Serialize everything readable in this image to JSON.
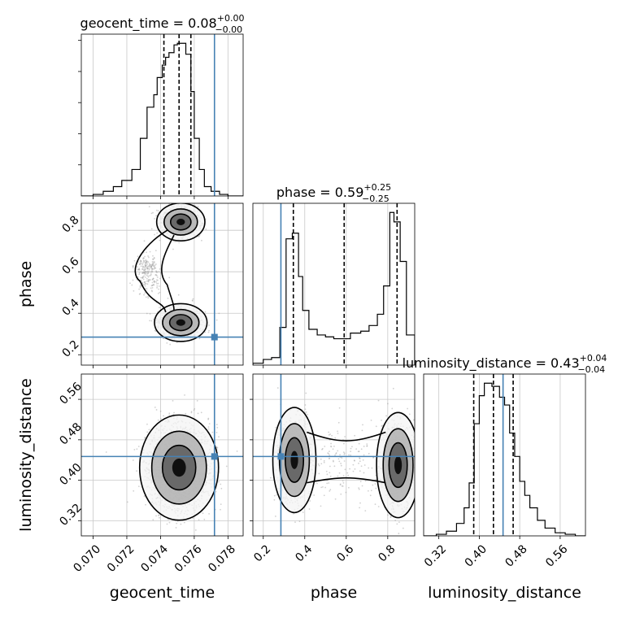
{
  "colors": {
    "truth": "#4682b4",
    "hist": "#000000",
    "grid": "#c8c8c8",
    "scatter": "#9a9a9a",
    "contour_fill_light": "#f4f4f4",
    "contour_fill_mid": "#b0b0b0",
    "contour_fill_dark": "#5a5a5a",
    "contour_fill_core": "#000000"
  },
  "chart_data": {
    "type": "corner",
    "parameters": [
      "geocent_time",
      "phase",
      "luminosity_distance"
    ],
    "titles": [
      {
        "param": "geocent_time",
        "base": "geocent_time = 0.08",
        "plus": "+0.00",
        "minus": "−0.00"
      },
      {
        "param": "phase",
        "base": "phase = 0.59",
        "plus": "+0.25",
        "minus": "−0.25"
      },
      {
        "param": "luminosity_distance",
        "base": "luminosity_distance = 0.43",
        "plus": "+0.04",
        "minus": "−0.04"
      }
    ],
    "axis_labels": {
      "geocent_time": "geocent_time",
      "phase": "phase",
      "luminosity_distance": "luminosity_distance"
    },
    "ranges": {
      "geocent_time": [
        0.0693,
        0.0789
      ],
      "phase": [
        0.15,
        0.93
      ],
      "luminosity_distance": [
        0.29,
        0.61
      ]
    },
    "ticks": {
      "geocent_time": [
        "0.070",
        "0.072",
        "0.074",
        "0.076",
        "0.078"
      ],
      "phase": [
        "0.2",
        "0.4",
        "0.6",
        "0.8"
      ],
      "luminosity_distance": [
        "0.32",
        "0.40",
        "0.48",
        "0.56"
      ]
    },
    "truth": {
      "geocent_time": 0.0772,
      "phase": 0.285,
      "luminosity_distance": 0.447
    },
    "quantiles": {
      "geocent_time": [
        0.0742,
        0.0751,
        0.0758
      ],
      "phase": [
        0.345,
        0.59,
        0.845
      ],
      "luminosity_distance": [
        0.389,
        0.428,
        0.467
      ]
    },
    "histograms": {
      "geocent_time": {
        "edges": [
          0.0693,
          0.07,
          0.0706,
          0.0712,
          0.0717,
          0.0723,
          0.0728,
          0.0732,
          0.0736,
          0.0738,
          0.0741,
          0.0743,
          0.0745,
          0.0748,
          0.075,
          0.0753,
          0.0755,
          0.0758,
          0.076,
          0.0763,
          0.0766,
          0.077,
          0.0775,
          0.078,
          0.0789
        ],
        "counts": [
          0,
          1,
          3,
          6,
          10,
          17,
          37,
          57,
          65,
          76,
          84,
          89,
          92,
          97,
          98,
          98,
          91,
          67,
          37,
          17,
          6,
          3,
          1,
          0
        ]
      },
      "phase": {
        "edges": [
          0.15,
          0.2,
          0.24,
          0.28,
          0.31,
          0.34,
          0.37,
          0.39,
          0.42,
          0.46,
          0.5,
          0.54,
          0.58,
          0.62,
          0.67,
          0.71,
          0.75,
          0.78,
          0.81,
          0.83,
          0.86,
          0.89,
          0.93
        ],
        "counts": [
          1,
          3,
          4,
          20,
          67,
          70,
          47,
          29,
          19,
          16,
          15,
          14,
          14,
          17,
          18,
          21,
          27,
          42,
          81,
          76,
          55,
          16
        ]
      },
      "luminosity_distance": {
        "edges": [
          0.29,
          0.315,
          0.335,
          0.355,
          0.37,
          0.38,
          0.39,
          0.4,
          0.41,
          0.425,
          0.44,
          0.45,
          0.46,
          0.47,
          0.48,
          0.49,
          0.5,
          0.515,
          0.53,
          0.55,
          0.57,
          0.59,
          0.61
        ],
        "counts": [
          0,
          1,
          3,
          8,
          18,
          34,
          72,
          90,
          98,
          96,
          89,
          84,
          66,
          51,
          35,
          26,
          18,
          10,
          5,
          2,
          1,
          0
        ]
      }
    },
    "grid": true,
    "scatter": {
      "phase_vs_geocent_time": {
        "modes": [
          {
            "x": 0.0752,
            "y": 0.84,
            "sx": 0.00055,
            "sy": 0.035,
            "w": 0.45
          },
          {
            "x": 0.0752,
            "y": 0.355,
            "sx": 0.0006,
            "sy": 0.035,
            "w": 0.45
          },
          {
            "x": 0.0732,
            "y": 0.6,
            "sx": 0.0004,
            "sy": 0.05,
            "w": 0.1
          }
        ]
      },
      "luminosity_distance_vs_geocent_time": {
        "modes": [
          {
            "x": 0.0751,
            "y": 0.425,
            "sx": 0.0009,
            "sy": 0.04,
            "w": 1.0
          }
        ]
      },
      "luminosity_distance_vs_phase": {
        "modes": [
          {
            "x": 0.35,
            "y": 0.44,
            "sx": 0.04,
            "sy": 0.04,
            "w": 0.45
          },
          {
            "x": 0.85,
            "y": 0.43,
            "sx": 0.04,
            "sy": 0.04,
            "w": 0.45
          },
          {
            "x": 0.6,
            "y": 0.44,
            "sx": 0.13,
            "sy": 0.04,
            "w": 0.1
          }
        ]
      }
    }
  }
}
